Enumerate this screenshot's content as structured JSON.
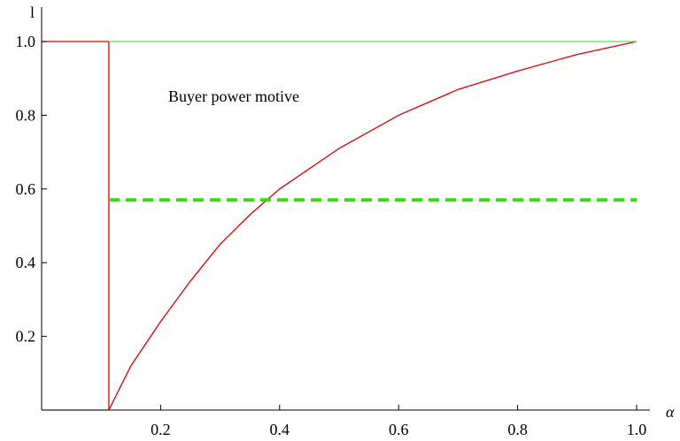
{
  "chart_data": {
    "type": "line",
    "xlabel": "α",
    "ylabel": "l",
    "xlim": [
      0,
      1.0
    ],
    "ylim": [
      0,
      1.0
    ],
    "x_ticks": [
      "0.2",
      "0.4",
      "0.6",
      "0.8",
      "1.0"
    ],
    "y_ticks": [
      "0.2",
      "0.4",
      "0.6",
      "0.8",
      "1.0"
    ],
    "grid": false,
    "annotations": [
      {
        "text": "Buyer power motive",
        "x": 0.22,
        "y": 0.84
      }
    ],
    "series": [
      {
        "style": "solid",
        "color": "#dd0000",
        "points": [
          [
            0,
            1.0
          ],
          [
            0.113,
            1.0
          ],
          [
            0.113,
            0
          ]
        ]
      },
      {
        "style": "solid",
        "color": "#dd0000",
        "points": [
          [
            0.113,
            0.0
          ],
          [
            0.15,
            0.12
          ],
          [
            0.2,
            0.24
          ],
          [
            0.25,
            0.35
          ],
          [
            0.3,
            0.45
          ],
          [
            0.35,
            0.53
          ],
          [
            0.4,
            0.6
          ],
          [
            0.5,
            0.71
          ],
          [
            0.6,
            0.8
          ],
          [
            0.7,
            0.87
          ],
          [
            0.8,
            0.92
          ],
          [
            0.9,
            0.965
          ],
          [
            1.0,
            1.0
          ]
        ]
      },
      {
        "style": "solid",
        "color": "#66dd55",
        "points": [
          [
            0.113,
            1.0
          ],
          [
            1.0,
            1.0
          ]
        ]
      },
      {
        "style": "solid",
        "color": "#66dd55",
        "points": [
          [
            0,
            0
          ],
          [
            0.113,
            0
          ]
        ]
      },
      {
        "style": "dashed",
        "color": "#33dd11",
        "points": [
          [
            0.113,
            0.57
          ],
          [
            1.0,
            0.57
          ]
        ]
      }
    ]
  }
}
